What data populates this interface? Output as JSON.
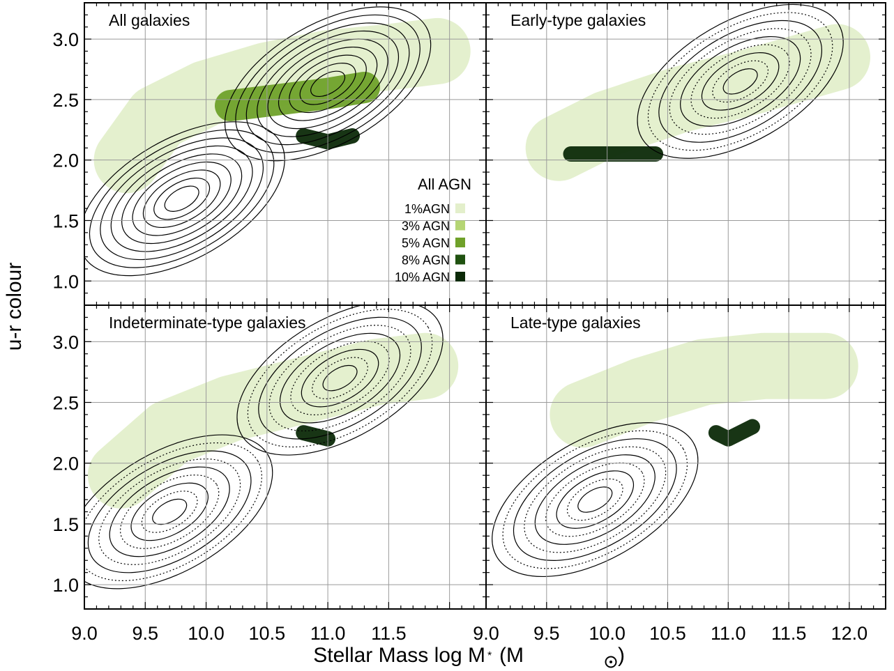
{
  "figure": {
    "xlabel_main": "Stellar Mass log M",
    "xlabel_sub": "*",
    "xlabel_unit_open": "(M",
    "xlabel_unit_close": ")",
    "ylabel": "u-r colour"
  },
  "colors": {
    "agn_1": "#e3efcb",
    "agn_3": "#b5d574",
    "agn_5": "#6fa12a",
    "agn_8": "#1f5210",
    "agn_10": "#0c2a08",
    "grid": "#9a9a9a"
  },
  "legend": {
    "title": "All AGN",
    "items": [
      {
        "label": "1%AGN",
        "color": "#e3efcb"
      },
      {
        "label": "3% AGN",
        "color": "#b5d574"
      },
      {
        "label": "5% AGN",
        "color": "#6fa12a"
      },
      {
        "label": "8% AGN",
        "color": "#1f5210"
      },
      {
        "label": "10% AGN",
        "color": "#0c2a08"
      }
    ]
  },
  "chart_data": [
    {
      "type": "heatmap",
      "title": "All galaxies",
      "xlim": [
        9.0,
        12.3
      ],
      "ylim": [
        0.8,
        3.3
      ],
      "xticks": [],
      "yticks": [
        "1.0",
        "1.5",
        "2.0",
        "2.5",
        "3.0"
      ],
      "grid": true,
      "contour_style": "solid",
      "agn_ridges": [
        {
          "level": "1%",
          "points": [
            [
              9.35,
              2.0
            ],
            [
              9.6,
              2.35
            ],
            [
              10.0,
              2.55
            ],
            [
              10.5,
              2.7
            ],
            [
              11.0,
              2.8
            ],
            [
              11.5,
              2.85
            ],
            [
              11.9,
              2.9
            ]
          ]
        },
        {
          "level": "5%",
          "points": [
            [
              10.2,
              2.45
            ],
            [
              10.6,
              2.5
            ],
            [
              11.0,
              2.55
            ],
            [
              11.3,
              2.6
            ]
          ]
        },
        {
          "level": "10%",
          "points": [
            [
              10.8,
              2.2
            ],
            [
              11.0,
              2.15
            ],
            [
              11.2,
              2.2
            ]
          ]
        }
      ],
      "galaxy_peaks": [
        {
          "x": 9.8,
          "y": 1.68
        },
        {
          "x": 11.0,
          "y": 2.63
        }
      ]
    },
    {
      "type": "heatmap",
      "title": "Early-type galaxies",
      "xlim": [
        9.0,
        12.3
      ],
      "ylim": [
        0.8,
        3.3
      ],
      "xticks": [],
      "yticks": [],
      "grid": true,
      "contour_style": "solid+dotted",
      "agn_ridges": [
        {
          "level": "1%",
          "points": [
            [
              9.6,
              2.1
            ],
            [
              10.0,
              2.3
            ],
            [
              10.6,
              2.5
            ],
            [
              11.2,
              2.65
            ],
            [
              11.9,
              2.85
            ]
          ]
        },
        {
          "level": "10%",
          "points": [
            [
              9.7,
              2.05
            ],
            [
              10.1,
              2.05
            ],
            [
              10.4,
              2.05
            ]
          ]
        }
      ],
      "galaxy_peaks": [
        {
          "x": 11.1,
          "y": 2.65
        }
      ]
    },
    {
      "type": "heatmap",
      "title": "Indeterminate-type galaxies",
      "xlim": [
        9.0,
        12.3
      ],
      "ylim": [
        0.8,
        3.3
      ],
      "xticks": [
        "9.0",
        "9.5",
        "10.0",
        "10.5",
        "11.0",
        "11.5"
      ],
      "yticks": [
        "1.0",
        "1.5",
        "2.0",
        "2.5",
        "3.0"
      ],
      "grid": true,
      "contour_style": "solid+dotted",
      "agn_ridges": [
        {
          "level": "1%",
          "points": [
            [
              9.3,
              1.9
            ],
            [
              9.7,
              2.25
            ],
            [
              10.2,
              2.45
            ],
            [
              10.8,
              2.6
            ],
            [
              11.4,
              2.75
            ],
            [
              11.8,
              2.8
            ]
          ]
        },
        {
          "level": "10%",
          "points": [
            [
              10.8,
              2.25
            ],
            [
              11.0,
              2.2
            ]
          ]
        }
      ],
      "galaxy_peaks": [
        {
          "x": 9.7,
          "y": 1.6
        },
        {
          "x": 11.1,
          "y": 2.7
        }
      ]
    },
    {
      "type": "heatmap",
      "title": "Late-type galaxies",
      "xlim": [
        9.0,
        12.3
      ],
      "ylim": [
        0.8,
        3.3
      ],
      "xticks": [
        "9.0",
        "9.5",
        "10.0",
        "10.5",
        "11.0",
        "11.5",
        "12.0"
      ],
      "yticks": [],
      "grid": true,
      "contour_style": "solid+dotted",
      "agn_ridges": [
        {
          "level": "1%",
          "points": [
            [
              9.8,
              2.4
            ],
            [
              10.3,
              2.6
            ],
            [
              10.8,
              2.75
            ],
            [
              11.3,
              2.8
            ],
            [
              11.8,
              2.8
            ]
          ]
        },
        {
          "level": "10%",
          "points": [
            [
              10.9,
              2.25
            ],
            [
              11.0,
              2.2
            ],
            [
              11.2,
              2.3
            ]
          ]
        }
      ],
      "galaxy_peaks": [
        {
          "x": 9.9,
          "y": 1.7
        }
      ]
    }
  ]
}
